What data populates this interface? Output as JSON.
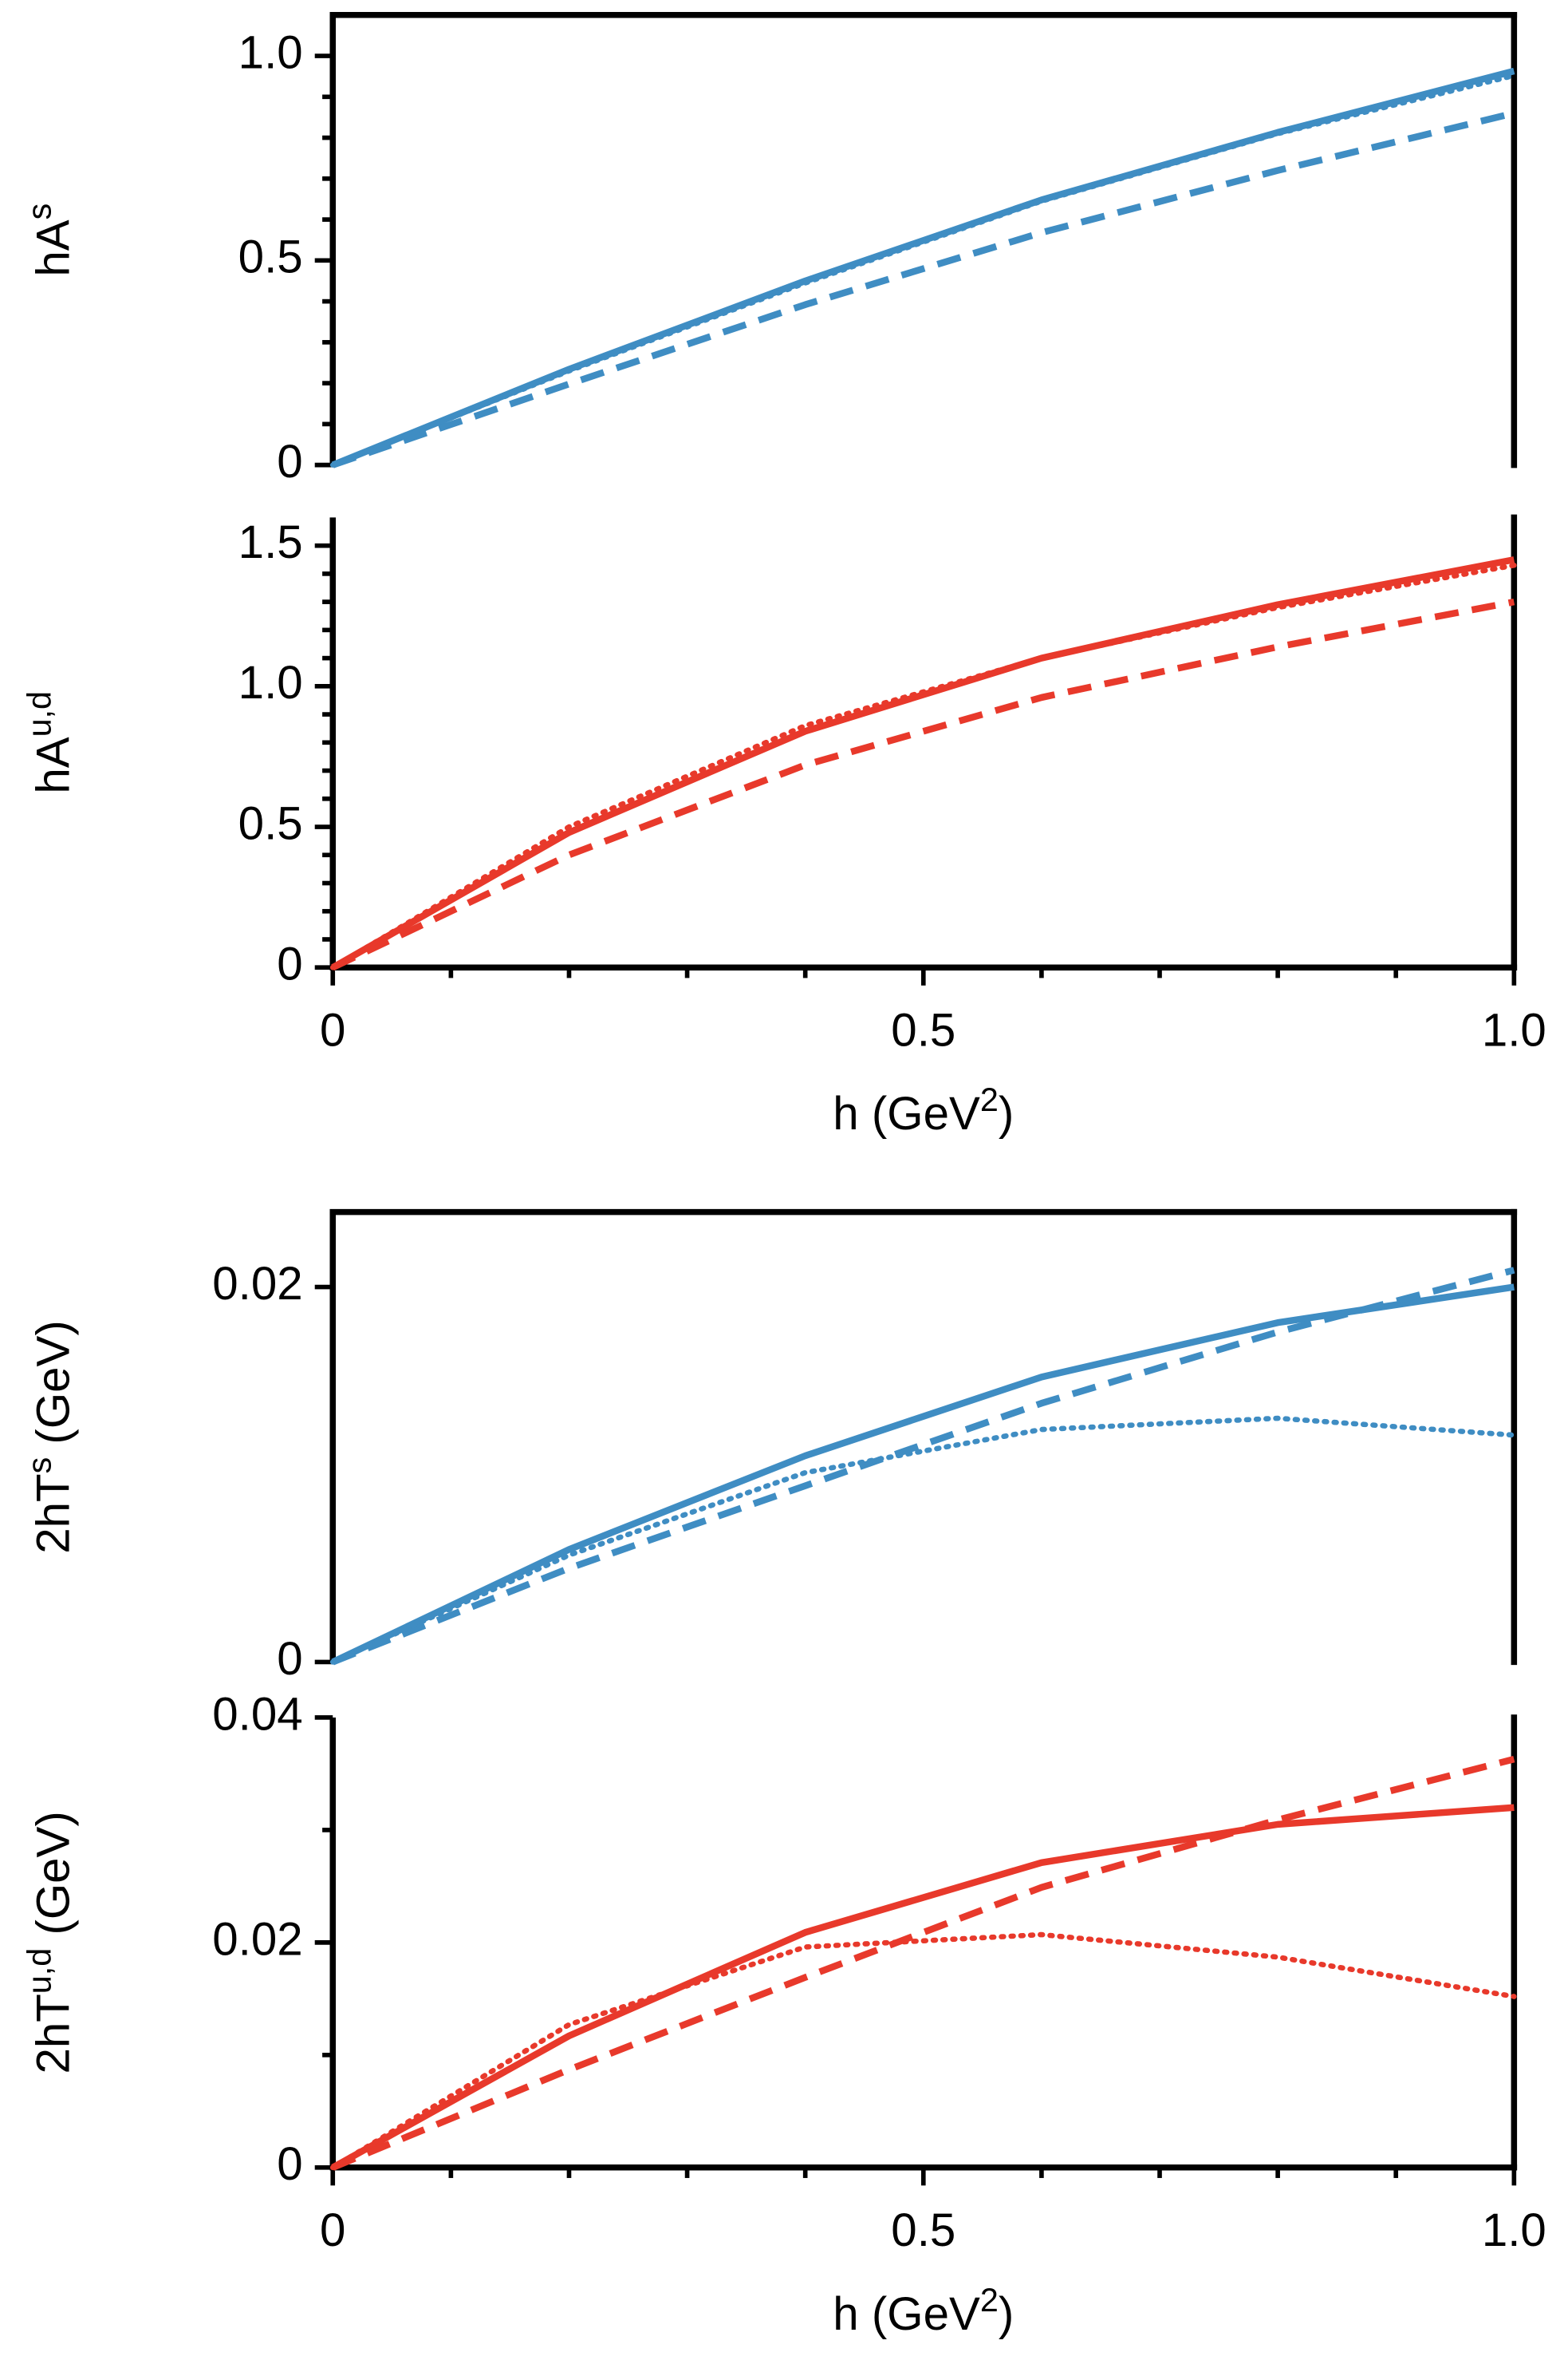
{
  "chart_data": [
    {
      "type": "line",
      "ylabel": {
        "base": "hA",
        "sup": "s"
      },
      "x": [
        0,
        0.2,
        0.4,
        0.6,
        0.8,
        1.0
      ],
      "xlim": [
        0,
        1
      ],
      "ylim": [
        0,
        1.1
      ],
      "yticks": [
        0,
        0.5,
        {
          "value": 1,
          "label": "1.0"
        }
      ],
      "yminor": [
        0.1,
        0.2,
        0.3,
        0.4,
        0.6,
        0.7,
        0.8,
        0.9
      ],
      "series": [
        {
          "color": "#3f8dc3",
          "dash": "solid",
          "values": [
            0,
            0.234,
            0.45,
            0.648,
            0.813,
            0.963
          ]
        },
        {
          "color": "#3f8dc3",
          "dash": "dashed",
          "values": [
            0,
            0.198,
            0.392,
            0.568,
            0.72,
            0.86
          ]
        },
        {
          "color": "#3f8dc3",
          "dash": "dotted",
          "values": [
            0,
            0.23,
            0.445,
            0.645,
            0.81,
            0.952
          ]
        }
      ]
    },
    {
      "type": "line",
      "ylabel": {
        "base": "hA",
        "sup": "u,d"
      },
      "xlabel": {
        "base": "h (GeV",
        "sup": "2",
        "tail": ")"
      },
      "x": [
        0,
        0.2,
        0.4,
        0.6,
        0.8,
        1.0
      ],
      "xlim": [
        0,
        1
      ],
      "xticks": [
        0,
        0.5,
        {
          "value": 1,
          "label": "1.0"
        }
      ],
      "xminor": [
        0.1,
        0.2,
        0.3,
        0.4,
        0.6,
        0.7,
        0.8,
        0.9
      ],
      "ylim": [
        0,
        1.6
      ],
      "yticks": [
        0,
        0.5,
        {
          "value": 1,
          "label": "1.0"
        },
        1.5
      ],
      "yminor": [
        0.1,
        0.2,
        0.3,
        0.4,
        0.6,
        0.7,
        0.8,
        0.9,
        1.1,
        1.2,
        1.3,
        1.4
      ],
      "series": [
        {
          "color": "#e8392b",
          "dash": "solid",
          "values": [
            0,
            0.48,
            0.84,
            1.1,
            1.29,
            1.45
          ]
        },
        {
          "color": "#e8392b",
          "dash": "dashed",
          "values": [
            0,
            0.4,
            0.72,
            0.96,
            1.14,
            1.3
          ]
        },
        {
          "color": "#e8392b",
          "dash": "dotted",
          "values": [
            0,
            0.5,
            0.86,
            1.1,
            1.28,
            1.43
          ]
        }
      ]
    },
    {
      "type": "line",
      "ylabel": {
        "base": "2hT",
        "sup": "s",
        "tail": " (GeV)"
      },
      "x": [
        0,
        0.2,
        0.4,
        0.6,
        0.8,
        1.0
      ],
      "xlim": [
        0,
        1
      ],
      "ylim": [
        0,
        0.024
      ],
      "yticks": [
        0,
        0.02
      ],
      "series": [
        {
          "color": "#3f8dc3",
          "dash": "solid",
          "values": [
            0,
            0.006,
            0.011,
            0.0152,
            0.0181,
            0.02
          ]
        },
        {
          "color": "#3f8dc3",
          "dash": "dashed",
          "values": [
            0,
            0.005,
            0.0094,
            0.0138,
            0.0176,
            0.0209
          ]
        },
        {
          "color": "#3f8dc3",
          "dash": "dotted",
          "values": [
            0,
            0.0057,
            0.0101,
            0.0124,
            0.013,
            0.0121
          ]
        }
      ]
    },
    {
      "type": "line",
      "ylabel": {
        "base": "2hT",
        "sup": "u,d",
        "tail": " (GeV)"
      },
      "xlabel": {
        "base": "h (GeV",
        "sup": "2",
        "tail": ")"
      },
      "x": [
        0,
        0.2,
        0.4,
        0.6,
        0.8,
        1.0
      ],
      "xlim": [
        0,
        1
      ],
      "xticks": [
        0,
        0.5,
        {
          "value": 1,
          "label": "1.0"
        }
      ],
      "xminor": [
        0.1,
        0.2,
        0.3,
        0.4,
        0.6,
        0.7,
        0.8,
        0.9
      ],
      "ylim": [
        0,
        0.04
      ],
      "yticks": [
        0,
        0.02,
        0.04
      ],
      "yminor": [
        0.01,
        0.03
      ],
      "series": [
        {
          "color": "#e8392b",
          "dash": "solid",
          "values": [
            0,
            0.0117,
            0.0209,
            0.0271,
            0.0305,
            0.032
          ]
        },
        {
          "color": "#e8392b",
          "dash": "dashed",
          "values": [
            0,
            0.0087,
            0.0169,
            0.0249,
            0.0309,
            0.0363
          ]
        },
        {
          "color": "#e8392b",
          "dash": "dotted",
          "values": [
            0,
            0.0127,
            0.0196,
            0.0207,
            0.0187,
            0.0152
          ]
        }
      ]
    }
  ]
}
